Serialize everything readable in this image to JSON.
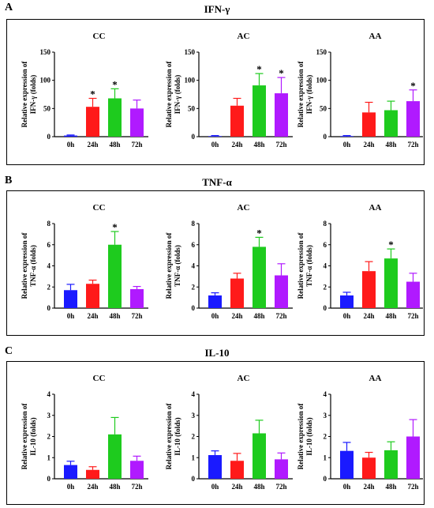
{
  "panels": [
    {
      "letter": "A",
      "title": "IFN-γ",
      "ylabel_line1": "Relative expression of",
      "ylabel_line2": "IFN-γ (folds)",
      "charts": [
        {
          "type": "bar",
          "title": "CC",
          "categories": [
            "0h",
            "24h",
            "48h",
            "72h"
          ],
          "values": [
            2,
            53,
            68,
            50
          ],
          "errors": [
            1,
            15,
            17,
            15
          ],
          "sig": [
            false,
            true,
            true,
            false
          ],
          "ylim": [
            0,
            150
          ],
          "yticks": [
            0,
            50,
            100,
            150
          ]
        },
        {
          "type": "bar",
          "title": "AC",
          "categories": [
            "0h",
            "24h",
            "48h",
            "72h"
          ],
          "values": [
            1,
            55,
            91,
            77
          ],
          "errors": [
            1,
            13,
            21,
            28
          ],
          "sig": [
            false,
            false,
            true,
            true
          ],
          "ylim": [
            0,
            150
          ],
          "yticks": [
            0,
            50,
            100,
            150
          ]
        },
        {
          "type": "bar",
          "title": "AA",
          "categories": [
            "0h",
            "24h",
            "48h",
            "72h"
          ],
          "values": [
            1,
            43,
            47,
            63
          ],
          "errors": [
            1,
            18,
            16,
            20
          ],
          "sig": [
            false,
            false,
            false,
            true
          ],
          "ylim": [
            0,
            150
          ],
          "yticks": [
            0,
            50,
            100,
            150
          ]
        }
      ]
    },
    {
      "letter": "B",
      "title": "TNF-α",
      "ylabel_line1": "Relative expression of",
      "ylabel_line2": "TNF-α (folds)",
      "charts": [
        {
          "type": "bar",
          "title": "CC",
          "categories": [
            "0h",
            "24h",
            "48h",
            "72h"
          ],
          "values": [
            1.7,
            2.3,
            6.0,
            1.8
          ],
          "errors": [
            0.55,
            0.35,
            1.25,
            0.25
          ],
          "sig": [
            false,
            false,
            true,
            false
          ],
          "ylim": [
            0,
            8
          ],
          "yticks": [
            0,
            2,
            4,
            6,
            8
          ]
        },
        {
          "type": "bar",
          "title": "AC",
          "categories": [
            "0h",
            "24h",
            "48h",
            "72h"
          ],
          "values": [
            1.2,
            2.8,
            5.8,
            3.1
          ],
          "errors": [
            0.25,
            0.5,
            0.9,
            1.1
          ],
          "sig": [
            false,
            false,
            true,
            false
          ],
          "ylim": [
            0,
            8
          ],
          "yticks": [
            0,
            2,
            4,
            6,
            8
          ]
        },
        {
          "type": "bar",
          "title": "AA",
          "categories": [
            "0h",
            "24h",
            "48h",
            "72h"
          ],
          "values": [
            1.2,
            3.5,
            4.7,
            2.5
          ],
          "errors": [
            0.3,
            0.9,
            0.9,
            0.8
          ],
          "sig": [
            false,
            false,
            true,
            false
          ],
          "ylim": [
            0,
            8
          ],
          "yticks": [
            0,
            2,
            4,
            6,
            8
          ]
        }
      ]
    },
    {
      "letter": "C",
      "title": "IL-10",
      "ylabel_line1": "Relative expression of",
      "ylabel_line2": "IL-10 (folds)",
      "charts": [
        {
          "type": "bar",
          "title": "CC",
          "categories": [
            "0h",
            "24h",
            "48h",
            "72h"
          ],
          "values": [
            0.65,
            0.42,
            2.1,
            0.85
          ],
          "errors": [
            0.18,
            0.15,
            0.8,
            0.22
          ],
          "sig": [
            false,
            false,
            false,
            false
          ],
          "ylim": [
            0,
            4
          ],
          "yticks": [
            0,
            1,
            2,
            3,
            4
          ]
        },
        {
          "type": "bar",
          "title": "AC",
          "categories": [
            "0h",
            "24h",
            "48h",
            "72h"
          ],
          "values": [
            1.12,
            0.85,
            2.15,
            0.92
          ],
          "errors": [
            0.2,
            0.35,
            0.62,
            0.3
          ],
          "sig": [
            false,
            false,
            false,
            false
          ],
          "ylim": [
            0,
            4
          ],
          "yticks": [
            0,
            1,
            2,
            3,
            4
          ]
        },
        {
          "type": "bar",
          "title": "AA",
          "categories": [
            "0h",
            "24h",
            "48h",
            "72h"
          ],
          "values": [
            1.32,
            1.0,
            1.35,
            2.0
          ],
          "errors": [
            0.4,
            0.25,
            0.4,
            0.8
          ],
          "sig": [
            false,
            false,
            false,
            false
          ],
          "ylim": [
            0,
            4
          ],
          "yticks": [
            0,
            1,
            2,
            3,
            4
          ]
        }
      ]
    }
  ],
  "bar_colors": [
    "#1a1aff",
    "#ff1a1a",
    "#1ecb1e",
    "#b01aff"
  ],
  "sig_marker": "*"
}
